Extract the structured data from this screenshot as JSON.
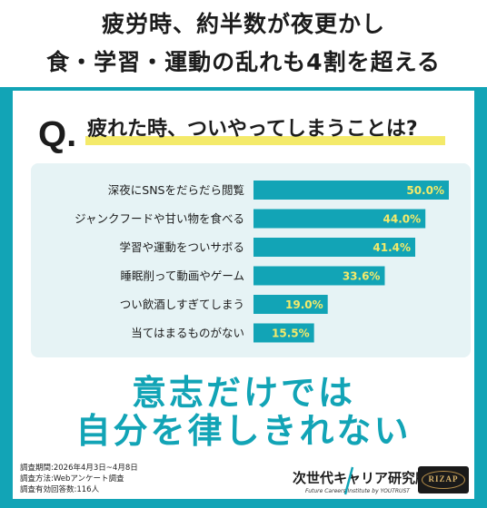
{
  "headline": {
    "line1": "疲労時、約半数が夜更かし",
    "line2": "食・学習・運動の乱れも4割を超える"
  },
  "question": {
    "mark": "Q.",
    "text": "疲れた時、ついやってしまうことは?"
  },
  "chart_data": {
    "type": "bar",
    "orientation": "horizontal",
    "categories": [
      "深夜にSNSをだらだら閲覧",
      "ジャンクフードや甘い物を食べる",
      "学習や運動をついサボる",
      "睡眠削って動画やゲーム",
      "つい飲酒しすぎてしまう",
      "当てはまるものがない"
    ],
    "values": [
      50.0,
      44.0,
      41.4,
      33.6,
      19.0,
      15.5
    ],
    "value_labels": [
      "50.0%",
      "44.0%",
      "41.4%",
      "33.6%",
      "19.0%",
      "15.5%"
    ],
    "xlim": [
      0,
      50
    ],
    "grid": false,
    "bar_color": "#12a4b6",
    "label_color": "#f4ea6a"
  },
  "message": {
    "line1": "意志だけでは",
    "line2": "自分を律しきれない"
  },
  "survey": {
    "period": "調査期間:2026年4月3日~4月8日",
    "method": "調査方法:Webアンケート調査",
    "responses": "調査有効回答数:116人"
  },
  "logos": {
    "institute_name": "次世代キャリア研究所",
    "institute_sub": "Future Careers Institute by YOUTRUST",
    "brand": "RIZAP"
  },
  "colors": {
    "accent": "#12a4b6",
    "highlight": "#f4ea6a",
    "panel": "#e6f3f5"
  }
}
